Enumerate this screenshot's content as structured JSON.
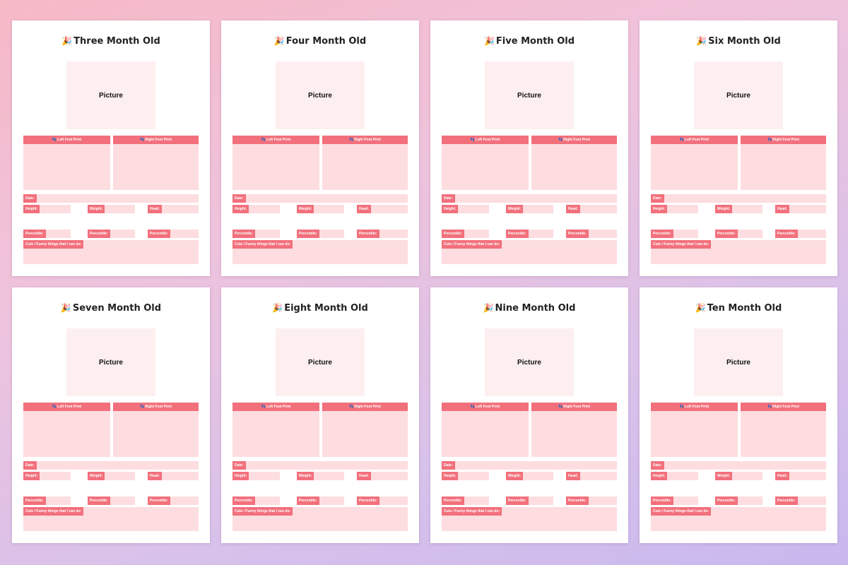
{
  "labels": {
    "picture": "Picture",
    "left_foot": "Left Foot Print",
    "right_foot": "Right Foot Print",
    "date": "Date:",
    "height": "Height:",
    "weight": "Weight:",
    "head": "Head:",
    "percentile": "Percentile:",
    "notes": "Cute / Funny things that I can do:"
  },
  "icons": {
    "title": "party-popper-icon",
    "foot": "footprint-icon"
  },
  "colors": {
    "accent": "#f2707c",
    "fill": "#fddde0",
    "picture": "#fdeff0"
  },
  "pages": [
    {
      "title": "Three Month Old"
    },
    {
      "title": "Four Month Old"
    },
    {
      "title": "Five Month Old"
    },
    {
      "title": "Six Month Old"
    },
    {
      "title": "Seven Month Old"
    },
    {
      "title": "Eight Month Old"
    },
    {
      "title": "Nine Month Old"
    },
    {
      "title": "Ten Month Old"
    }
  ]
}
